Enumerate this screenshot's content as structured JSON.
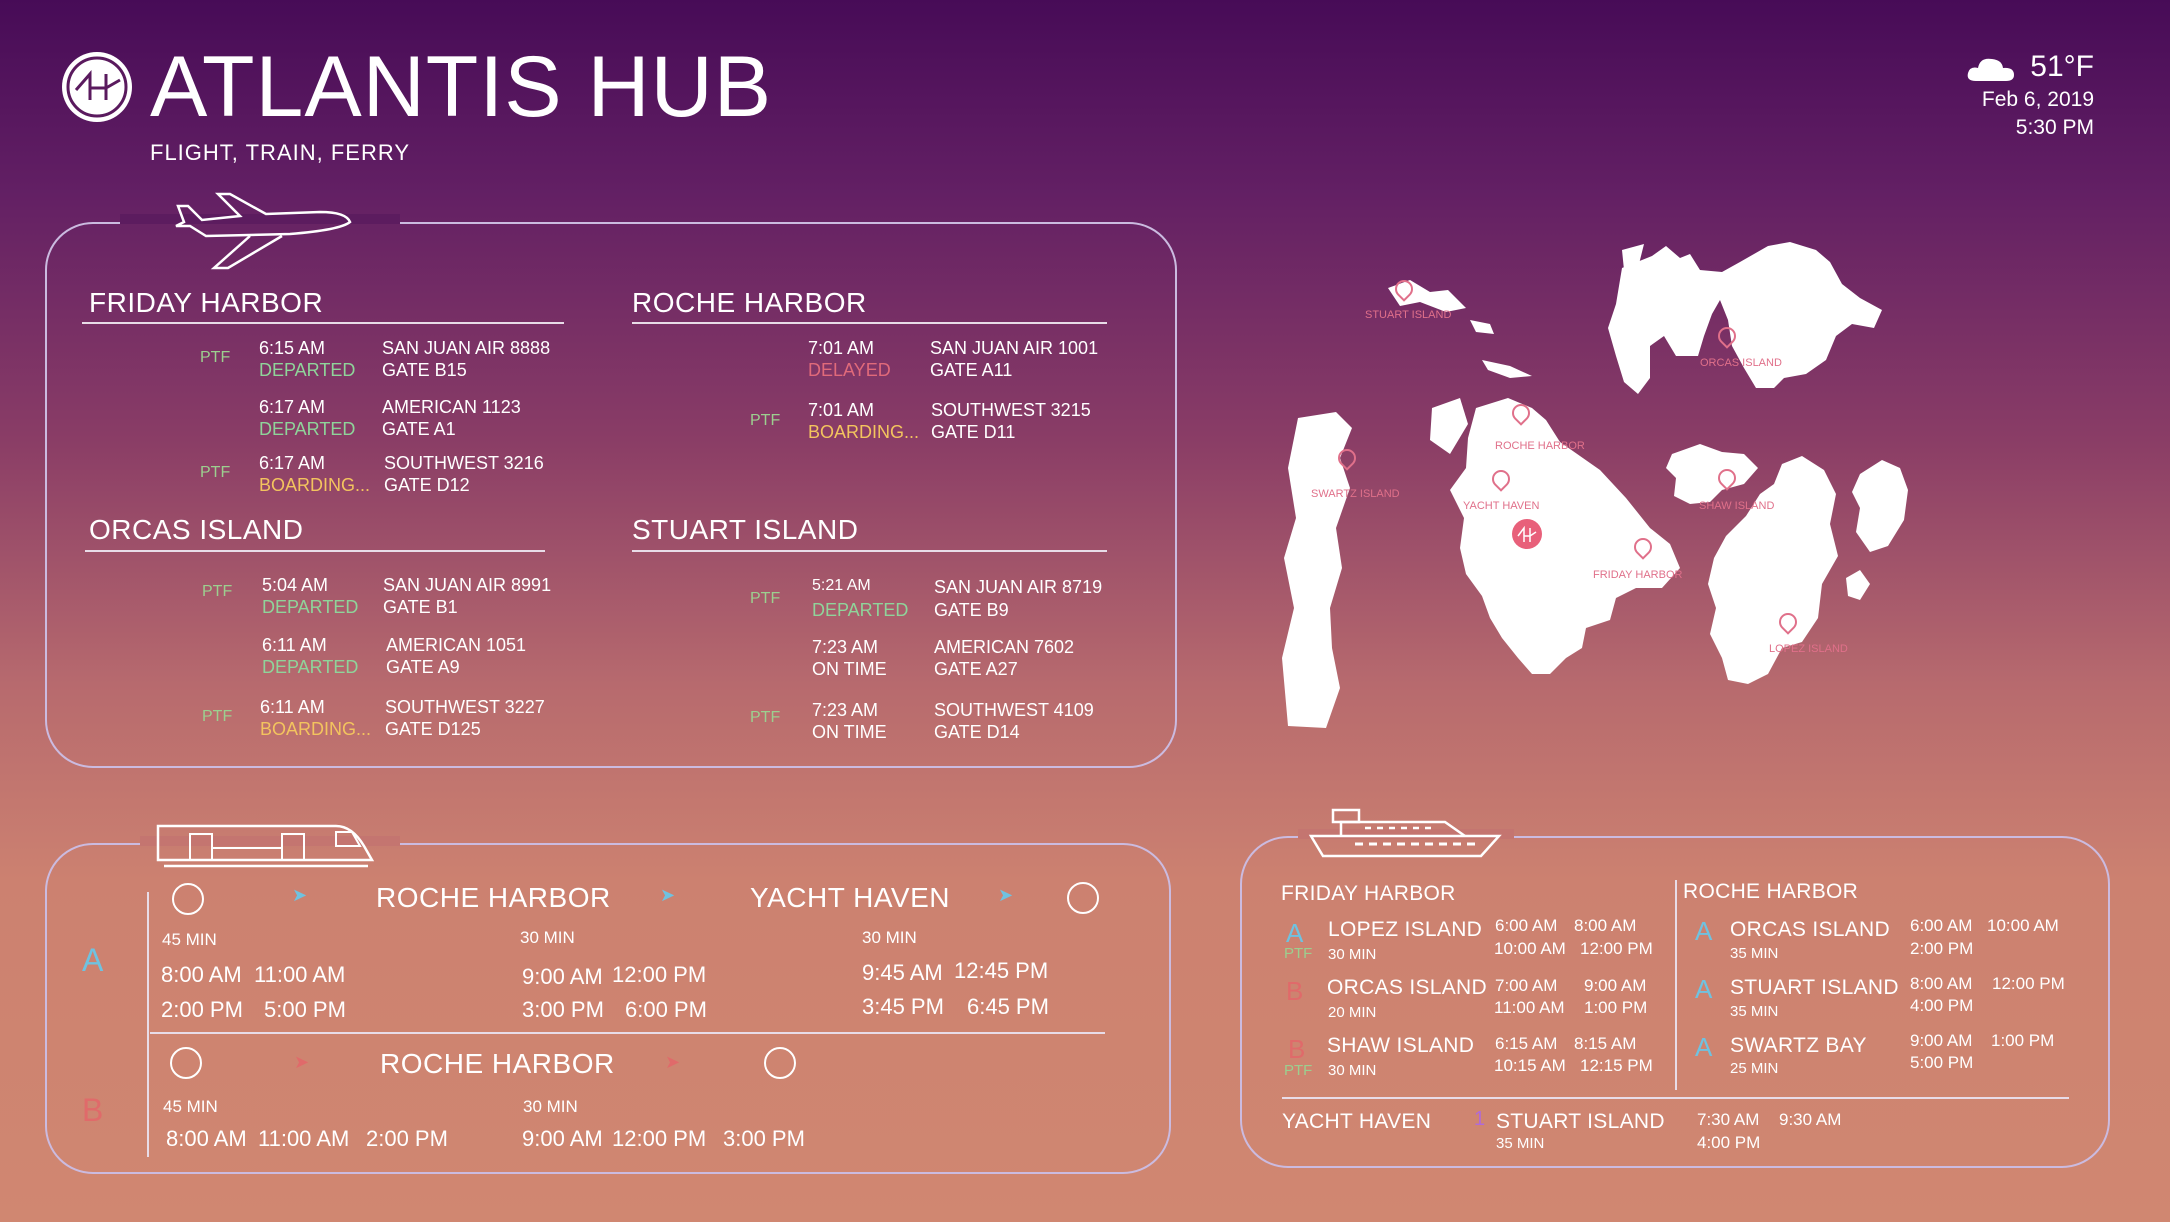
{
  "header": {
    "title": "ATLANTIS HUB",
    "subtitle": "FLIGHT, TRAIN, FERRY"
  },
  "weather": {
    "icon": "cloud-icon",
    "temperature": "51°F",
    "date": "Feb 6, 2019",
    "time": "5:30 PM"
  },
  "flights": {
    "icon": "airplane-icon",
    "ptf_label": "PTF",
    "friday_harbor": {
      "title": "FRIDAY HARBOR",
      "rows": [
        {
          "time": "6:15 AM",
          "status": "DEPARTED",
          "flight": "SAN JUAN AIR 8888",
          "gate": "GATE B15"
        },
        {
          "time": "6:17 AM",
          "status": "DEPARTED",
          "flight": "AMERICAN 1123",
          "gate": "GATE A1"
        },
        {
          "time": "6:17 AM",
          "status": "BOARDING...",
          "flight": "SOUTHWEST 3216",
          "gate": "GATE D12"
        }
      ]
    },
    "roche_harbor": {
      "title": "ROCHE HARBOR",
      "rows": [
        {
          "time": "7:01 AM",
          "status": "DELAYED",
          "flight": "SAN JUAN AIR 1001",
          "gate": "GATE A11"
        },
        {
          "time": "7:01 AM",
          "status": "BOARDING...",
          "flight": "SOUTHWEST 3215",
          "gate": "GATE D11"
        }
      ]
    },
    "orcas_island": {
      "title": "ORCAS ISLAND",
      "rows": [
        {
          "time": "5:04 AM",
          "status": "DEPARTED",
          "flight": "SAN JUAN AIR 8991",
          "gate": "GATE B1"
        },
        {
          "time": "6:11 AM",
          "status": "DEPARTED",
          "flight": "AMERICAN 1051",
          "gate": "GATE A9"
        },
        {
          "time": "6:11 AM",
          "status": "BOARDING...",
          "flight": "SOUTHWEST 3227",
          "gate": "GATE D125"
        }
      ]
    },
    "stuart_island": {
      "title": "STUART ISLAND",
      "rows": [
        {
          "time": "5:21 AM",
          "status": "DEPARTED",
          "flight": "SAN JUAN AIR 8719",
          "gate": "GATE B9"
        },
        {
          "time": "7:23 AM",
          "status": "ON TIME",
          "flight": "AMERICAN 7602",
          "gate": "GATE A27"
        },
        {
          "time": "7:23 AM",
          "status": "ON TIME",
          "flight": "SOUTHWEST 4109",
          "gate": "GATE D14"
        }
      ]
    }
  },
  "train": {
    "icon": "train-icon",
    "line_a": {
      "letter": "A",
      "stop1": "ROCHE HARBOR",
      "stop2": "YACHT HAVEN",
      "leg1_min": "45 MIN",
      "leg2_min": "30 MIN",
      "leg3_min": "30 MIN",
      "leg1_times": [
        "8:00 AM",
        "11:00 AM",
        "2:00 PM",
        "5:00 PM"
      ],
      "leg2_times": [
        "9:00 AM",
        "12:00 PM",
        "3:00 PM",
        "6:00 PM"
      ],
      "leg3_times": [
        "9:45 AM",
        "12:45 PM",
        "3:45 PM",
        "6:45 PM"
      ]
    },
    "line_b": {
      "letter": "B",
      "stop1": "ROCHE HARBOR",
      "leg1_min": "45 MIN",
      "leg2_min": "30 MIN",
      "leg1_times": [
        "8:00 AM",
        "11:00 AM",
        "2:00 PM"
      ],
      "leg2_times": [
        "9:00 AM",
        "12:00 PM",
        "3:00 PM"
      ]
    }
  },
  "map": {
    "labels": {
      "stuart": "STUART ISLAND",
      "orcas": "ORCAS ISLAND",
      "roche": "ROCHE HARBOR",
      "swartz": "SWARTZ ISLAND",
      "yacht": "YACHT HAVEN",
      "shaw": "SHAW ISLAND",
      "friday": "FRIDAY HARBOR",
      "lopez": "LOPEZ ISLAND"
    }
  },
  "ferry": {
    "icon": "ship-icon",
    "friday_harbor": {
      "title": "FRIDAY HARBOR",
      "rows": [
        {
          "letter": "A",
          "ptf": "PTF",
          "dest": "LOPEZ ISLAND",
          "min": "30 MIN",
          "t1": "6:00 AM",
          "t2": "8:00 AM",
          "t3": "10:00 AM",
          "t4": "12:00 PM"
        },
        {
          "letter": "B",
          "ptf": "",
          "dest": "ORCAS ISLAND",
          "min": "20 MIN",
          "t1": "7:00 AM",
          "t2": "9:00 AM",
          "t3": "11:00 AM",
          "t4": "1:00 PM"
        },
        {
          "letter": "B",
          "ptf": "PTF",
          "dest": "SHAW ISLAND",
          "min": "30 MIN",
          "t1": "6:15 AM",
          "t2": "8:15 AM",
          "t3": "10:15 AM",
          "t4": "12:15 PM"
        }
      ]
    },
    "roche_harbor": {
      "title": "ROCHE HARBOR",
      "rows": [
        {
          "letter": "A",
          "dest": "ORCAS ISLAND",
          "min": "35 MIN",
          "t1": "6:00 AM",
          "t2": "10:00 AM",
          "t3": "2:00 PM",
          "t4": ""
        },
        {
          "letter": "A",
          "dest": "STUART ISLAND",
          "min": "35 MIN",
          "t1": "8:00 AM",
          "t2": "12:00 PM",
          "t3": "4:00 PM",
          "t4": ""
        },
        {
          "letter": "A",
          "dest": "SWARTZ BAY",
          "min": "25 MIN",
          "t1": "9:00 AM",
          "t2": "1:00 PM",
          "t3": "5:00 PM",
          "t4": ""
        }
      ]
    },
    "yacht_haven": {
      "title": "YACHT HAVEN",
      "letter": "1",
      "dest": "STUART ISLAND",
      "min": "35 MIN",
      "t1": "7:30 AM",
      "t2": "9:30 AM",
      "t3": "4:00 PM"
    }
  }
}
